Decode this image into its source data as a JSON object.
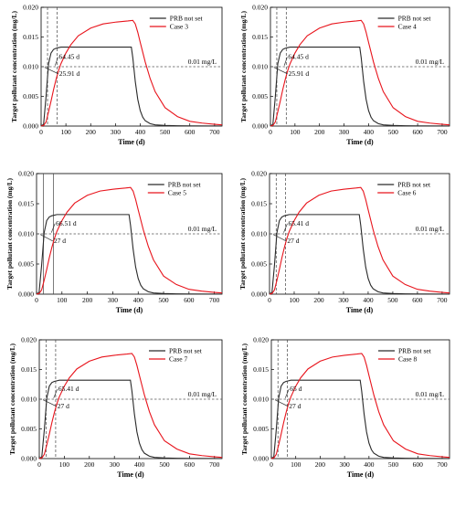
{
  "chart_data": [
    {
      "type": "line",
      "xlabel": "Time (d)",
      "ylabel": "Target pollutant concentration (mg/L)",
      "xlim": [
        0,
        730
      ],
      "ylim": [
        0,
        0.02
      ],
      "xticks": [
        0,
        100,
        200,
        300,
        400,
        500,
        600,
        700
      ],
      "yticks": [
        "0.000",
        "0.005",
        "0.010",
        "0.015",
        "0.020"
      ],
      "threshold": 0.01,
      "threshold_label": "0.01 mg/L",
      "vlines": [
        25.91,
        64.45
      ],
      "vline_style": "dashed",
      "legend": "top-right",
      "series": [
        {
          "name": "PRB not set",
          "color": "#2a2a2a",
          "x": [
            0,
            10,
            20,
            30,
            40,
            50,
            60,
            70,
            80,
            100,
            130,
            160,
            200,
            260,
            300,
            350,
            364,
            370,
            380,
            390,
            400,
            410,
            420,
            440,
            460,
            500,
            550,
            600,
            730
          ],
          "y": [
            0,
            0.0003,
            0.005,
            0.0105,
            0.0123,
            0.0129,
            0.0131,
            0.0132,
            0.0133,
            0.0133,
            0.0133,
            0.0133,
            0.0133,
            0.0133,
            0.0133,
            0.0133,
            0.0133,
            0.0115,
            0.0075,
            0.0045,
            0.0026,
            0.0015,
            0.0009,
            0.0004,
            0.0002,
            0.0001,
            5e-05,
            3e-05,
            2e-05
          ]
        },
        {
          "name": "Case 3",
          "color": "#e8141c",
          "x": [
            0,
            10,
            20,
            30,
            40,
            50,
            60,
            70,
            80,
            100,
            120,
            150,
            200,
            250,
            300,
            350,
            370,
            380,
            390,
            400,
            420,
            440,
            460,
            500,
            550,
            600,
            650,
            700,
            730
          ],
          "y": [
            0,
            0.0001,
            0.0007,
            0.0024,
            0.0042,
            0.0061,
            0.0078,
            0.0093,
            0.0105,
            0.0123,
            0.0137,
            0.0152,
            0.0165,
            0.0172,
            0.0175,
            0.0177,
            0.0178,
            0.0172,
            0.0158,
            0.0141,
            0.0108,
            0.008,
            0.0058,
            0.0031,
            0.0016,
            0.0008,
            0.0005,
            0.0003,
            0.0002
          ]
        }
      ],
      "annotations": [
        "64.45 d",
        "25.91 d"
      ]
    },
    {
      "type": "line",
      "xlabel": "Time (d)",
      "ylabel": "Target pollutant concentration (mg/L)",
      "xlim": [
        0,
        730
      ],
      "ylim": [
        0,
        0.02
      ],
      "xticks": [
        0,
        100,
        200,
        300,
        400,
        500,
        600,
        700
      ],
      "yticks": [
        "0.000",
        "0.005",
        "0.010",
        "0.015",
        "0.020"
      ],
      "threshold": 0.01,
      "threshold_label": "0.01 mg/L",
      "vlines": [
        25.91,
        64.45
      ],
      "vline_style": "dashed",
      "legend": "top-right",
      "series": [
        {
          "name": "PRB not set",
          "color": "#2a2a2a",
          "x": [
            0,
            10,
            20,
            30,
            40,
            50,
            60,
            70,
            80,
            100,
            130,
            160,
            200,
            260,
            300,
            350,
            364,
            370,
            380,
            390,
            400,
            410,
            420,
            440,
            460,
            500,
            550,
            600,
            730
          ],
          "y": [
            0,
            0.0003,
            0.005,
            0.0105,
            0.0123,
            0.0129,
            0.0131,
            0.0132,
            0.0133,
            0.0133,
            0.0133,
            0.0133,
            0.0133,
            0.0133,
            0.0133,
            0.0133,
            0.0133,
            0.0115,
            0.0075,
            0.0045,
            0.0026,
            0.0015,
            0.0009,
            0.0004,
            0.0002,
            0.0001,
            5e-05,
            3e-05,
            2e-05
          ]
        },
        {
          "name": "Case 4",
          "color": "#e8141c",
          "x": [
            0,
            10,
            20,
            30,
            40,
            50,
            60,
            70,
            80,
            100,
            120,
            150,
            200,
            250,
            300,
            350,
            370,
            380,
            390,
            400,
            420,
            440,
            460,
            500,
            550,
            600,
            650,
            700,
            730
          ],
          "y": [
            0,
            0.0001,
            0.0007,
            0.0024,
            0.0042,
            0.0061,
            0.0078,
            0.0093,
            0.0105,
            0.0123,
            0.0137,
            0.0152,
            0.0165,
            0.0172,
            0.0175,
            0.0177,
            0.0178,
            0.0172,
            0.0158,
            0.0141,
            0.0108,
            0.008,
            0.0058,
            0.0031,
            0.0016,
            0.0008,
            0.0005,
            0.0003,
            0.0002
          ]
        }
      ],
      "annotations": [
        "64.45 d",
        "25.91 d"
      ]
    },
    {
      "type": "line",
      "xlabel": "Time (d)",
      "ylabel": "Target pollutant concentration (mg/L)",
      "xlim": [
        0,
        730
      ],
      "ylim": [
        0,
        0.02
      ],
      "xticks": [
        0,
        100,
        200,
        300,
        400,
        500,
        600,
        700
      ],
      "yticks": [
        "0.000",
        "0.005",
        "0.010",
        "0.015",
        "0.020"
      ],
      "threshold": 0.01,
      "threshold_label": "0.01 mg/L",
      "vlines": [
        27,
        66.51
      ],
      "vline_style": "solid",
      "legend": "top-right",
      "series": [
        {
          "name": "PRB not set",
          "color": "#2a2a2a",
          "x": [
            0,
            10,
            20,
            30,
            40,
            50,
            60,
            70,
            80,
            100,
            130,
            160,
            200,
            260,
            300,
            350,
            364,
            370,
            380,
            390,
            400,
            410,
            420,
            440,
            460,
            500,
            550,
            600,
            730
          ],
          "y": [
            0,
            0.0003,
            0.0048,
            0.0102,
            0.0122,
            0.0128,
            0.013,
            0.0131,
            0.0132,
            0.0132,
            0.0132,
            0.0132,
            0.0132,
            0.0132,
            0.0132,
            0.0132,
            0.0132,
            0.0114,
            0.0075,
            0.0045,
            0.0026,
            0.0015,
            0.0009,
            0.0004,
            0.0002,
            0.0001,
            5e-05,
            3e-05,
            2e-05
          ]
        },
        {
          "name": "Case 5",
          "color": "#e8141c",
          "x": [
            0,
            10,
            20,
            30,
            40,
            50,
            60,
            70,
            80,
            100,
            120,
            150,
            200,
            250,
            300,
            350,
            370,
            380,
            390,
            400,
            420,
            440,
            460,
            500,
            550,
            600,
            650,
            700,
            730
          ],
          "y": [
            0,
            0.0001,
            0.0007,
            0.0023,
            0.0041,
            0.006,
            0.0077,
            0.0092,
            0.0104,
            0.0122,
            0.0136,
            0.0151,
            0.0164,
            0.0171,
            0.0174,
            0.0176,
            0.0177,
            0.0171,
            0.0157,
            0.014,
            0.0107,
            0.0079,
            0.0057,
            0.003,
            0.0016,
            0.0008,
            0.0005,
            0.0003,
            0.0002
          ]
        }
      ],
      "annotations": [
        "66.51 d",
        "27 d"
      ]
    },
    {
      "type": "line",
      "xlabel": "Time (d)",
      "ylabel": "Target pollutant concentration (mg/L)",
      "xlim": [
        0,
        730
      ],
      "ylim": [
        0,
        0.02
      ],
      "xticks": [
        0,
        100,
        200,
        300,
        400,
        500,
        600,
        700
      ],
      "yticks": [
        "0.000",
        "0.005",
        "0.010",
        "0.015",
        "0.020"
      ],
      "threshold": 0.01,
      "threshold_label": "0.01 mg/L",
      "vlines": [
        27,
        65.41
      ],
      "vline_style": "dashed",
      "legend": "top-right",
      "series": [
        {
          "name": "PRB not set",
          "color": "#2a2a2a",
          "x": [
            0,
            10,
            20,
            30,
            40,
            50,
            60,
            70,
            80,
            100,
            130,
            160,
            200,
            260,
            300,
            350,
            364,
            370,
            380,
            390,
            400,
            410,
            420,
            440,
            460,
            500,
            550,
            600,
            730
          ],
          "y": [
            0,
            0.0003,
            0.0048,
            0.0102,
            0.0122,
            0.0128,
            0.013,
            0.0131,
            0.0132,
            0.0132,
            0.0132,
            0.0132,
            0.0132,
            0.0132,
            0.0132,
            0.0132,
            0.0132,
            0.0114,
            0.0075,
            0.0045,
            0.0026,
            0.0015,
            0.0009,
            0.0004,
            0.0002,
            0.0001,
            5e-05,
            3e-05,
            2e-05
          ]
        },
        {
          "name": "Case 6",
          "color": "#e8141c",
          "x": [
            0,
            10,
            20,
            30,
            40,
            50,
            60,
            70,
            80,
            100,
            120,
            150,
            200,
            250,
            300,
            350,
            370,
            380,
            390,
            400,
            420,
            440,
            460,
            500,
            550,
            600,
            650,
            700,
            730
          ],
          "y": [
            0,
            0.0001,
            0.0007,
            0.0023,
            0.0041,
            0.006,
            0.0077,
            0.0092,
            0.0104,
            0.0122,
            0.0136,
            0.0151,
            0.0164,
            0.0171,
            0.0174,
            0.0176,
            0.0177,
            0.0171,
            0.0157,
            0.014,
            0.0107,
            0.0079,
            0.0057,
            0.003,
            0.0016,
            0.0008,
            0.0005,
            0.0003,
            0.0002
          ]
        }
      ],
      "annotations": [
        "65.41 d",
        "27 d"
      ]
    },
    {
      "type": "line",
      "xlabel": "Time (d)",
      "ylabel": "Target pollutant concentration (mg/L)",
      "xlim": [
        0,
        730
      ],
      "ylim": [
        0,
        0.02
      ],
      "xticks": [
        0,
        100,
        200,
        300,
        400,
        500,
        600,
        700
      ],
      "yticks": [
        "0.000",
        "0.005",
        "0.010",
        "0.015",
        "0.020"
      ],
      "threshold": 0.01,
      "threshold_label": "0.01 mg/L",
      "vlines": [
        27,
        65.41
      ],
      "vline_style": "dashed",
      "legend": "top-right",
      "series": [
        {
          "name": "PRB not set",
          "color": "#2a2a2a",
          "x": [
            0,
            10,
            20,
            30,
            40,
            50,
            60,
            70,
            80,
            100,
            130,
            160,
            200,
            260,
            300,
            350,
            364,
            370,
            380,
            390,
            400,
            410,
            420,
            440,
            460,
            500,
            550,
            600,
            730
          ],
          "y": [
            0,
            0.0003,
            0.0048,
            0.0102,
            0.0122,
            0.0128,
            0.013,
            0.0131,
            0.0132,
            0.0132,
            0.0132,
            0.0132,
            0.0132,
            0.0132,
            0.0132,
            0.0132,
            0.0132,
            0.0114,
            0.0075,
            0.0045,
            0.0026,
            0.0015,
            0.0009,
            0.0004,
            0.0002,
            0.0001,
            5e-05,
            3e-05,
            2e-05
          ]
        },
        {
          "name": "Case 7",
          "color": "#e8141c",
          "x": [
            0,
            10,
            20,
            30,
            40,
            50,
            60,
            70,
            80,
            100,
            120,
            150,
            200,
            250,
            300,
            350,
            370,
            380,
            390,
            400,
            420,
            440,
            460,
            500,
            550,
            600,
            650,
            700,
            730
          ],
          "y": [
            0,
            0.0001,
            0.0007,
            0.0023,
            0.0041,
            0.006,
            0.0077,
            0.0092,
            0.0104,
            0.0122,
            0.0136,
            0.0151,
            0.0164,
            0.0171,
            0.0174,
            0.0176,
            0.0177,
            0.0171,
            0.0157,
            0.014,
            0.0107,
            0.0079,
            0.0057,
            0.003,
            0.0016,
            0.0008,
            0.0005,
            0.0003,
            0.0002
          ]
        }
      ],
      "annotations": [
        "65.41 d",
        "27 d"
      ]
    },
    {
      "type": "line",
      "xlabel": "Time (d)",
      "ylabel": "Target pollutant concentration (mg/L)",
      "xlim": [
        0,
        730
      ],
      "ylim": [
        0,
        0.02
      ],
      "xticks": [
        0,
        100,
        200,
        300,
        400,
        500,
        600,
        700
      ],
      "yticks": [
        "0.000",
        "0.005",
        "0.010",
        "0.015",
        "0.020"
      ],
      "threshold": 0.01,
      "threshold_label": "0.01 mg/L",
      "vlines": [
        27,
        65
      ],
      "vline_style": "dashed",
      "legend": "top-right",
      "series": [
        {
          "name": "PRB not set",
          "color": "#2a2a2a",
          "x": [
            0,
            10,
            20,
            30,
            40,
            50,
            60,
            70,
            80,
            100,
            130,
            160,
            200,
            260,
            300,
            350,
            364,
            370,
            380,
            390,
            400,
            410,
            420,
            440,
            460,
            500,
            550,
            600,
            730
          ],
          "y": [
            0,
            0.0003,
            0.0048,
            0.0102,
            0.0122,
            0.0128,
            0.013,
            0.0131,
            0.0132,
            0.0132,
            0.0132,
            0.0132,
            0.0132,
            0.0132,
            0.0132,
            0.0132,
            0.0132,
            0.0114,
            0.0075,
            0.0045,
            0.0026,
            0.0015,
            0.0009,
            0.0004,
            0.0002,
            0.0001,
            5e-05,
            3e-05,
            2e-05
          ]
        },
        {
          "name": "Case 8",
          "color": "#e8141c",
          "x": [
            0,
            10,
            20,
            30,
            40,
            50,
            60,
            70,
            80,
            100,
            120,
            150,
            200,
            250,
            300,
            350,
            370,
            380,
            390,
            400,
            420,
            440,
            460,
            500,
            550,
            600,
            650,
            700,
            730
          ],
          "y": [
            0,
            0.0001,
            0.0007,
            0.0023,
            0.0041,
            0.006,
            0.0077,
            0.0092,
            0.0104,
            0.0122,
            0.0136,
            0.0151,
            0.0164,
            0.0171,
            0.0174,
            0.0176,
            0.0177,
            0.0171,
            0.0157,
            0.014,
            0.0107,
            0.0079,
            0.0057,
            0.003,
            0.0016,
            0.0008,
            0.0005,
            0.0003,
            0.0002
          ]
        }
      ],
      "annotations": [
        "65 d",
        "27 d"
      ]
    }
  ]
}
